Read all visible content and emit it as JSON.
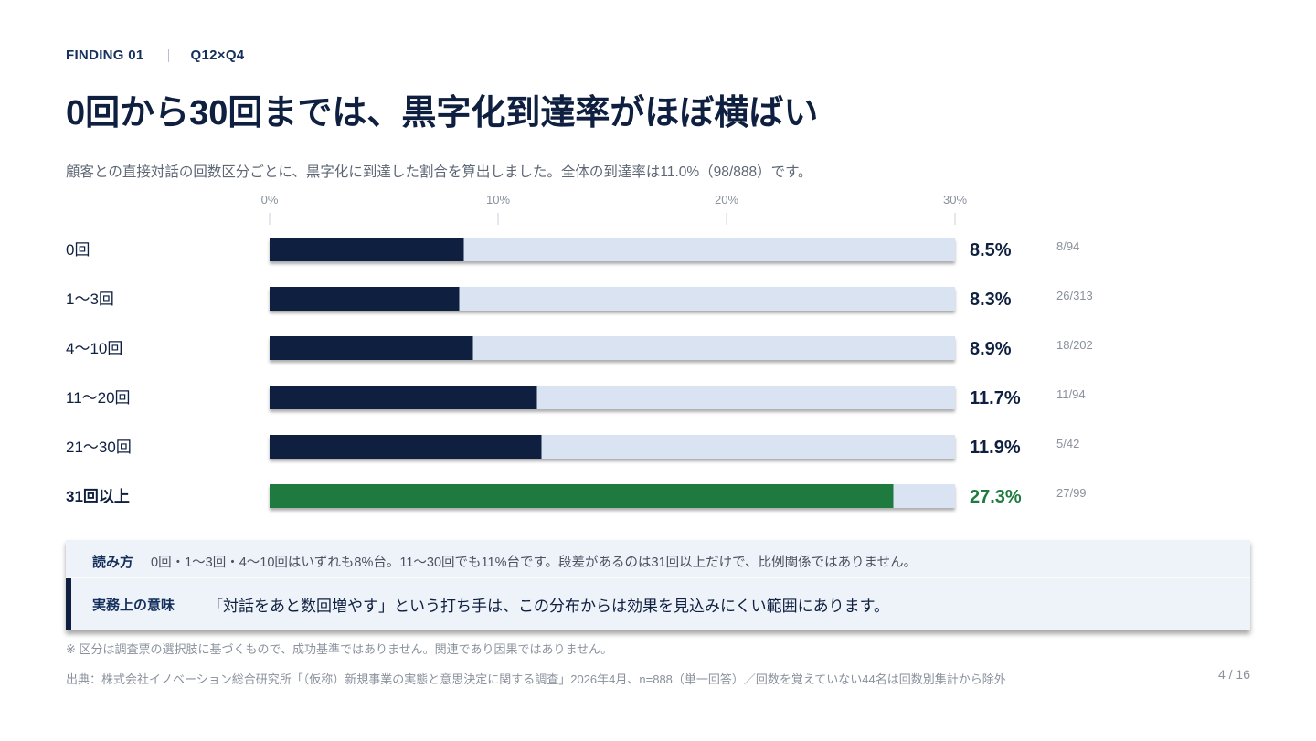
{
  "header": {
    "finding": "FINDING 01",
    "question_ref": "Q12×Q4",
    "title": "0回から30回までは、黒字化到達率がほぼ横ばい",
    "subtitle": "顧客との直接対話の回数区分ごとに、黒字化に到達した割合を算出しました。全体の到達率は11.0%（98/888）です。"
  },
  "chart_data": {
    "type": "bar",
    "orientation": "horizontal",
    "title": "",
    "xlabel": "",
    "ylabel": "",
    "xlim": [
      0,
      30
    ],
    "x_ticks": [
      "0%",
      "10%",
      "20%",
      "30%"
    ],
    "categories": [
      "0回",
      "1〜3回",
      "4〜10回",
      "11〜20回",
      "21〜30回",
      "31回以上"
    ],
    "values": [
      8.5,
      8.3,
      8.9,
      11.7,
      11.9,
      27.3
    ],
    "value_labels": [
      "8.5%",
      "8.3%",
      "8.9%",
      "11.7%",
      "11.9%",
      "27.3%"
    ],
    "counts": [
      "8/94",
      "26/313",
      "18/202",
      "11/94",
      "5/42",
      "27/99"
    ],
    "highlight_index": 5,
    "colors": {
      "bar": "#0e1f3f",
      "highlight": "#1f7a3f",
      "track": "#d9e3f1",
      "axis_text": "#8a919c",
      "count_text": "#8a919c"
    }
  },
  "reading": {
    "label": "読み方",
    "text": "0回・1〜3回・4〜10回はいずれも8%台。11〜30回でも11%台です。段差があるのは31回以上だけで、比例関係ではありません。"
  },
  "implication": {
    "label": "実務上の意味",
    "text": "「対話をあと数回増やす」という打ち手は、この分布からは効果を見込みにくい範囲にあります。"
  },
  "footer": {
    "note": "※ 区分は調査票の選択肢に基づくもので、成功基準ではありません。関連であり因果ではありません。",
    "source": "出典：株式会社イノベーション総合研究所「（仮称）新規事業の実態と意思決定に関する調査」2026年4月、n=888（単一回答）／回数を覚えていない44名は回数別集計から除外",
    "page": "4 / 16"
  }
}
